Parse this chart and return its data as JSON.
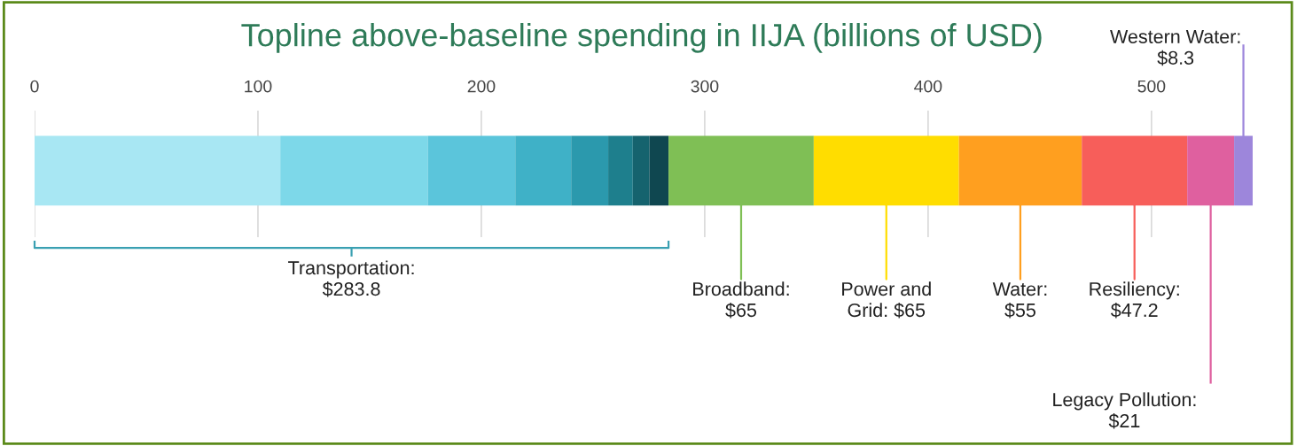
{
  "chart_data": {
    "type": "bar",
    "orientation": "horizontal",
    "stacked": true,
    "title": "Topline above-baseline spending in IIJA (billions of USD)",
    "categories": [
      null
    ],
    "series": [
      {
        "color": "#a8e7f3",
        "values": [
          110
        ]
      },
      {
        "color": "#7dd8e9",
        "values": [
          66
        ]
      },
      {
        "color": "#5bc5db",
        "values": [
          39.2
        ]
      },
      {
        "color": "#3fb1c7",
        "values": [
          25
        ]
      },
      {
        "color": "#2b99ad",
        "values": [
          16.6
        ]
      },
      {
        "color": "#1e7f8d",
        "values": [
          11
        ]
      },
      {
        "color": "#15636e",
        "values": [
          7.5
        ]
      },
      {
        "color": "#0f4750",
        "values": [
          8.5
        ]
      },
      {
        "name": "Broadband:\n$65",
        "color": "#7fbf55",
        "values": [
          65
        ]
      },
      {
        "name": "Power and\nGrid: $65",
        "color": "#ffdd00",
        "values": [
          65
        ]
      },
      {
        "name": "Water:\n$55",
        "color": "#ff9f1f",
        "values": [
          55
        ]
      },
      {
        "name": "Resiliency:\n$47.2",
        "color": "#f75e5a",
        "values": [
          47.2
        ]
      },
      {
        "name": "Legacy Pollution:\n$21",
        "color": "#df609f",
        "values": [
          21
        ]
      },
      {
        "name": "Western Water:\n$8.3",
        "color": "#9d86db",
        "values": [
          8.3
        ]
      }
    ],
    "xlim": [
      0,
      545.3
    ],
    "xticks": [
      0,
      100,
      200,
      300,
      400,
      500
    ],
    "grid": "x",
    "tick_labels": "x",
    "annotations": [
      "Transportation:\n$283.8"
    ]
  }
}
